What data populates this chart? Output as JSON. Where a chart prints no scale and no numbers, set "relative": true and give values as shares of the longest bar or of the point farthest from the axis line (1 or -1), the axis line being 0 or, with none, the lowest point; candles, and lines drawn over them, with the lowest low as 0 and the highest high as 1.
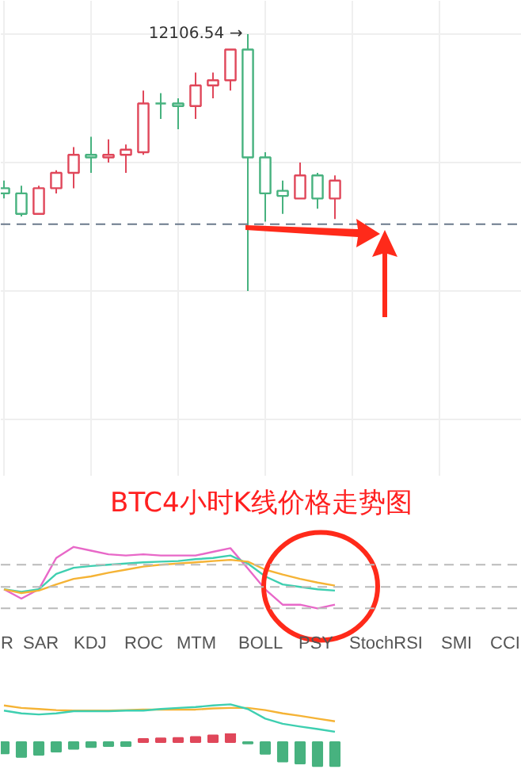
{
  "chart_data": [
    {
      "type": "candlestick",
      "relative": true,
      "grid": true,
      "categories": [
        null,
        null,
        null,
        null,
        null,
        null,
        null,
        null,
        null,
        null,
        null,
        null,
        null,
        null,
        null,
        null,
        null,
        null,
        null,
        null
      ],
      "ohlc": [
        [
          0.4,
          0.43,
          0.36,
          0.38
        ],
        [
          0.38,
          0.41,
          0.29,
          0.3
        ],
        [
          0.3,
          0.41,
          0.3,
          0.4
        ],
        [
          0.4,
          0.47,
          0.38,
          0.46
        ],
        [
          0.46,
          0.56,
          0.4,
          0.53
        ],
        [
          0.53,
          0.6,
          0.46,
          0.52
        ],
        [
          0.52,
          0.59,
          0.5,
          0.53
        ],
        [
          0.53,
          0.57,
          0.46,
          0.55
        ],
        [
          0.54,
          0.78,
          0.53,
          0.73
        ],
        [
          0.73,
          0.77,
          0.67,
          0.73
        ],
        [
          0.73,
          0.75,
          0.63,
          0.72
        ],
        [
          0.72,
          0.85,
          0.67,
          0.8
        ],
        [
          0.8,
          0.85,
          0.75,
          0.82
        ],
        [
          0.82,
          0.94,
          0.78,
          0.94
        ],
        [
          0.94,
          1,
          0,
          0.52
        ],
        [
          0.52,
          0.54,
          0.27,
          0.38
        ],
        [
          0.39,
          0.43,
          0.3,
          0.37
        ],
        [
          0.36,
          0.5,
          0.36,
          0.45
        ],
        [
          0.45,
          0.46,
          0.32,
          0.36
        ],
        [
          0.36,
          0.45,
          0.28,
          0.43
        ]
      ],
      "colors": [
        "#47b27f",
        "#47b27f",
        "#e0475a",
        "#e0475a",
        "#e0475a",
        "#47b27f",
        "#e0475a",
        "#e0475a",
        "#e0475a",
        "#47b27f",
        "#47b27f",
        "#e0475a",
        "#e0475a",
        "#e0475a",
        "#47b27f",
        "#47b27f",
        "#47b27f",
        "#e0475a",
        "#47b27f",
        "#e0475a"
      ],
      "annotations": [
        "12106.54 →"
      ],
      "ref_lines": [
        {
          "axis": "y",
          "value": 0.26,
          "color": "#6b7a8c",
          "line_style": "dashed"
        }
      ]
    },
    {
      "type": "line",
      "relative": true,
      "title": "BTC4小时K线价格走势图",
      "categories": [
        null,
        null,
        null,
        null,
        null,
        null,
        null,
        null,
        null,
        null,
        null,
        null,
        null,
        null,
        null,
        null,
        null,
        null,
        null,
        null
      ],
      "series": [
        {
          "color": "#e868c8",
          "values": [
            0.31,
            0.16,
            0.31,
            0.82,
            1,
            0.94,
            0.88,
            0.86,
            0.88,
            0.86,
            0.86,
            0.86,
            0.92,
            0.98,
            0.65,
            0.31,
            0.06,
            0.06,
            0,
            0.06
          ]
        },
        {
          "color": "#3ecfb0",
          "values": [
            0.31,
            0.27,
            0.31,
            0.56,
            0.66,
            0.69,
            0.71,
            0.73,
            0.75,
            0.76,
            0.77,
            0.8,
            0.82,
            0.86,
            0.73,
            0.52,
            0.39,
            0.35,
            0.31,
            0.29
          ]
        },
        {
          "color": "#f5b335",
          "values": [
            0.31,
            0.25,
            0.29,
            0.39,
            0.48,
            0.52,
            0.58,
            0.63,
            0.68,
            0.71,
            0.73,
            0.75,
            0.77,
            0.79,
            0.76,
            0.63,
            0.55,
            0.48,
            0.42,
            0.37
          ]
        }
      ],
      "ref_lines": [
        {
          "axis": "y",
          "value": 0.71,
          "color": "#bbbbbb",
          "line_style": "dashed"
        },
        {
          "axis": "y",
          "value": 0.35,
          "color": "#bbbbbb",
          "line_style": "dashed"
        },
        {
          "axis": "y",
          "value": 0,
          "color": "#bbbbbb",
          "line_style": "dashed"
        }
      ],
      "annotations": [
        "R",
        "SAR",
        "KDJ",
        "ROC",
        "MTM",
        "BOLL",
        "PSY",
        "StochRSI",
        "SMI",
        "CCI"
      ]
    },
    {
      "type": "line",
      "relative": true,
      "categories": [
        null,
        null,
        null,
        null,
        null,
        null,
        null,
        null,
        null,
        null,
        null,
        null,
        null,
        null,
        null,
        null,
        null,
        null,
        null,
        null
      ],
      "series": [
        {
          "color": "#f5b335",
          "values": [
            0.96,
            0.87,
            0.83,
            0.79,
            0.77,
            0.77,
            0.77,
            0.79,
            0.81,
            0.81,
            0.81,
            0.81,
            0.85,
            0.87,
            0.87,
            0.79,
            0.67,
            0.58,
            0.48,
            0.38
          ]
        },
        {
          "color": "#3ecfb0",
          "values": [
            0.77,
            0.67,
            0.63,
            0.67,
            0.75,
            0.75,
            0.75,
            0.77,
            0.77,
            0.83,
            0.87,
            0.9,
            0.96,
            1,
            0.83,
            0.48,
            0.29,
            0.19,
            0.1,
            0
          ]
        }
      ]
    },
    {
      "type": "bar",
      "relative": true,
      "categories": [
        null,
        null,
        null,
        null,
        null,
        null,
        null,
        null,
        null,
        null,
        null,
        null,
        null,
        null,
        null,
        null,
        null,
        null,
        null,
        null
      ],
      "colors": [
        "#47b27f",
        "#47b27f",
        "#47b27f",
        "#47b27f",
        "#47b27f",
        "#47b27f",
        "#47b27f",
        "#47b27f",
        "#e0475a",
        "#e0475a",
        "#e0475a",
        "#e0475a",
        "#e0475a",
        "#e0475a",
        "#47b27f",
        "#47b27f",
        "#47b27f",
        "#47b27f",
        "#47b27f",
        "#47b27f"
      ],
      "values": [
        -0.47,
        -0.62,
        -0.53,
        -0.4,
        -0.28,
        -0.21,
        -0.17,
        -0.17,
        0.13,
        0.15,
        0.17,
        0.21,
        0.28,
        0.4,
        -0.06,
        -0.49,
        -0.81,
        -0.89,
        -1,
        -1
      ]
    }
  ]
}
